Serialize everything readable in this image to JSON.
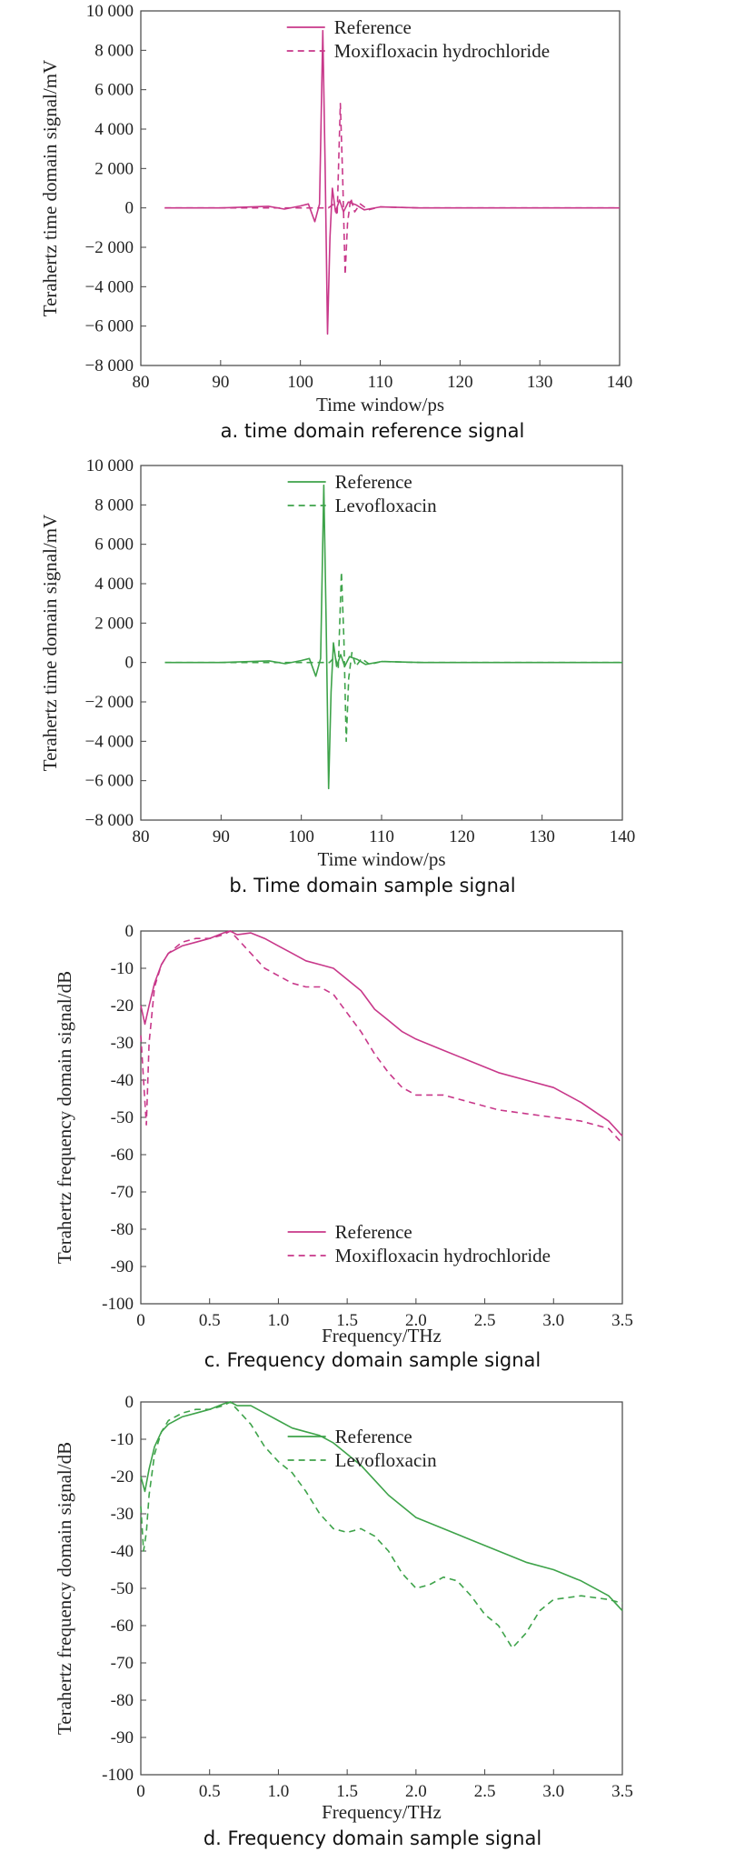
{
  "chart_data": [
    {
      "type": "line",
      "caption": "a. time domain reference signal",
      "xlabel": "Time window/ps",
      "ylabel": "Terahertz time domain signal/mV",
      "xlim": [
        80,
        140
      ],
      "ylim": [
        -8000,
        10000
      ],
      "xticks": [
        "80",
        "90",
        "100",
        "110",
        "120",
        "130",
        "140"
      ],
      "yticks": [
        "10 000",
        "8 000",
        "6 000",
        "4 000",
        "2 000",
        "0",
        "−2 000",
        "−4 000",
        "−6 000",
        "−8 000"
      ],
      "legend_position": "top-right",
      "color": "#c8388a",
      "series": [
        {
          "name": "Reference",
          "style": "solid",
          "x": [
            83,
            90,
            96,
            98,
            100,
            101,
            101.8,
            102.4,
            102.8,
            103.1,
            103.4,
            103.7,
            104.0,
            104.4,
            104.9,
            105.4,
            106,
            107,
            108,
            110,
            115,
            120,
            130,
            140
          ],
          "y": [
            0,
            0,
            80,
            -60,
            100,
            200,
            -700,
            200,
            9000,
            2000,
            -6400,
            -1500,
            1000,
            -200,
            400,
            -200,
            300,
            150,
            -100,
            50,
            0,
            0,
            0,
            0
          ]
        },
        {
          "name": "Moxifloxacin hydrochloride",
          "style": "dashed",
          "x": [
            83,
            90,
            100,
            103.5,
            104.2,
            104.6,
            105.0,
            105.3,
            105.6,
            105.9,
            106.3,
            106.8,
            107.5,
            108.5,
            110,
            115,
            120,
            130,
            140
          ],
          "y": [
            0,
            0,
            0,
            0,
            200,
            -400,
            5300,
            1500,
            -3400,
            -800,
            500,
            -200,
            200,
            -100,
            50,
            0,
            0,
            0,
            0
          ]
        }
      ]
    },
    {
      "type": "line",
      "caption": "b. Time domain sample signal",
      "xlabel": "Time window/ps",
      "ylabel": "Terahertz time domain signal/mV",
      "xlim": [
        80,
        140
      ],
      "ylim": [
        -8000,
        10000
      ],
      "xticks": [
        "80",
        "90",
        "100",
        "110",
        "120",
        "130",
        "140"
      ],
      "yticks": [
        "10 000",
        "8 000",
        "6 000",
        "4 000",
        "2 000",
        "0",
        "−2 000",
        "−4 000",
        "−6 000",
        "−8 000"
      ],
      "legend_position": "top-right",
      "color": "#3ea34a",
      "series": [
        {
          "name": "Reference",
          "style": "solid",
          "x": [
            83,
            90,
            96,
            98,
            100,
            101,
            101.8,
            102.4,
            102.8,
            103.1,
            103.4,
            103.7,
            104.0,
            104.4,
            104.9,
            105.4,
            106,
            107,
            108,
            110,
            115,
            120,
            130,
            140
          ],
          "y": [
            0,
            0,
            80,
            -60,
            100,
            200,
            -700,
            200,
            9000,
            2000,
            -6400,
            -1500,
            1000,
            -200,
            400,
            -200,
            300,
            150,
            -100,
            50,
            0,
            0,
            0,
            0
          ]
        },
        {
          "name": "Levofloxacin",
          "style": "dashed",
          "x": [
            83,
            90,
            100,
            103.5,
            104.2,
            104.6,
            105.0,
            105.3,
            105.6,
            105.9,
            106.3,
            106.8,
            107.5,
            108.5,
            110,
            115,
            120,
            130,
            140
          ],
          "y": [
            0,
            0,
            0,
            0,
            300,
            -300,
            4600,
            1200,
            -4000,
            -800,
            500,
            -200,
            200,
            -100,
            50,
            0,
            0,
            0,
            0
          ]
        }
      ]
    },
    {
      "type": "line",
      "caption": "c. Frequency domain sample signal",
      "xlabel": "Frequency/THz",
      "ylabel": "Terahertz frequency domain signal/dB",
      "xlim": [
        0,
        3.5
      ],
      "ylim": [
        -100,
        0
      ],
      "xticks": [
        "0",
        "0.5",
        "1.0",
        "1.5",
        "2.0",
        "2.5",
        "3.0",
        "3.5"
      ],
      "yticks": [
        "0",
        "-10",
        "-20",
        "-30",
        "-40",
        "-50",
        "-60",
        "-70",
        "-80",
        "-90",
        "-100"
      ],
      "legend_position": "bottom-right",
      "color": "#c8388a",
      "series": [
        {
          "name": "Reference",
          "style": "solid",
          "x": [
            0.0,
            0.03,
            0.06,
            0.1,
            0.15,
            0.2,
            0.3,
            0.4,
            0.5,
            0.6,
            0.65,
            0.7,
            0.8,
            0.9,
            1.0,
            1.1,
            1.2,
            1.3,
            1.4,
            1.5,
            1.6,
            1.7,
            1.8,
            1.9,
            2.0,
            2.2,
            2.4,
            2.6,
            2.8,
            3.0,
            3.2,
            3.4,
            3.5
          ],
          "y": [
            -20,
            -25,
            -20,
            -14,
            -9,
            -6,
            -4,
            -3,
            -2,
            -0.5,
            0,
            -1,
            -0.5,
            -2,
            -4,
            -6,
            -8,
            -9,
            -10,
            -13,
            -16,
            -21,
            -24,
            -27,
            -29,
            -32,
            -35,
            -38,
            -40,
            -42,
            -46,
            -51,
            -55
          ]
        },
        {
          "name": "Moxifloxacin hydrochloride",
          "style": "dashed",
          "x": [
            0.0,
            0.02,
            0.04,
            0.06,
            0.1,
            0.15,
            0.2,
            0.3,
            0.4,
            0.5,
            0.6,
            0.65,
            0.7,
            0.8,
            0.9,
            1.0,
            1.1,
            1.2,
            1.3,
            1.4,
            1.5,
            1.6,
            1.7,
            1.8,
            1.9,
            2.0,
            2.2,
            2.4,
            2.6,
            2.8,
            3.0,
            3.2,
            3.4,
            3.5
          ],
          "y": [
            -28,
            -40,
            -52,
            -30,
            -15,
            -9,
            -6,
            -3,
            -2,
            -2,
            -1,
            0,
            -2,
            -6,
            -10,
            -12,
            -14,
            -15,
            -15,
            -17,
            -22,
            -27,
            -33,
            -38,
            -42,
            -44,
            -44,
            -46,
            -48,
            -49,
            -50,
            -51,
            -53,
            -57
          ]
        }
      ]
    },
    {
      "type": "line",
      "caption": "d. Frequency domain sample signal",
      "xlabel": "Frequency/THz",
      "ylabel": "Terahertz frequency domain signal/dB",
      "xlim": [
        0,
        3.5
      ],
      "ylim": [
        -100,
        0
      ],
      "xticks": [
        "0",
        "0.5",
        "1.0",
        "1.5",
        "2.0",
        "2.5",
        "3.0",
        "3.5"
      ],
      "yticks": [
        "0",
        "-10",
        "-20",
        "-30",
        "-40",
        "-50",
        "-60",
        "-70",
        "-80",
        "-90",
        "-100"
      ],
      "legend_position": "top-right",
      "color": "#3ea34a",
      "series": [
        {
          "name": "Reference",
          "style": "solid",
          "x": [
            0.0,
            0.03,
            0.06,
            0.1,
            0.15,
            0.2,
            0.3,
            0.4,
            0.5,
            0.6,
            0.65,
            0.7,
            0.8,
            0.9,
            1.0,
            1.1,
            1.2,
            1.3,
            1.4,
            1.5,
            1.6,
            1.7,
            1.8,
            1.9,
            2.0,
            2.2,
            2.4,
            2.6,
            2.8,
            3.0,
            3.2,
            3.4,
            3.5
          ],
          "y": [
            -20,
            -24,
            -18,
            -12,
            -8,
            -6,
            -4,
            -3,
            -2,
            -0.5,
            0,
            -1,
            -1,
            -3,
            -5,
            -7,
            -8,
            -9,
            -11,
            -14,
            -17,
            -21,
            -25,
            -28,
            -31,
            -34,
            -37,
            -40,
            -43,
            -45,
            -48,
            -52,
            -56
          ]
        },
        {
          "name": "Levofloxacin",
          "style": "dashed",
          "x": [
            0.0,
            0.02,
            0.04,
            0.06,
            0.1,
            0.15,
            0.2,
            0.3,
            0.4,
            0.5,
            0.6,
            0.65,
            0.7,
            0.8,
            0.9,
            1.0,
            1.1,
            1.2,
            1.3,
            1.4,
            1.5,
            1.6,
            1.7,
            1.8,
            1.9,
            2.0,
            2.1,
            2.2,
            2.3,
            2.4,
            2.5,
            2.6,
            2.7,
            2.8,
            2.9,
            3.0,
            3.2,
            3.4,
            3.5
          ],
          "y": [
            -28,
            -40,
            -35,
            -25,
            -14,
            -8,
            -5,
            -3,
            -2,
            -2,
            -1,
            0,
            -2,
            -6,
            -12,
            -16,
            -19,
            -24,
            -30,
            -34,
            -35,
            -34,
            -36,
            -40,
            -46,
            -50,
            -49,
            -47,
            -48,
            -52,
            -57,
            -60,
            -66,
            -62,
            -56,
            -53,
            -52,
            -53,
            -54
          ]
        }
      ]
    }
  ]
}
